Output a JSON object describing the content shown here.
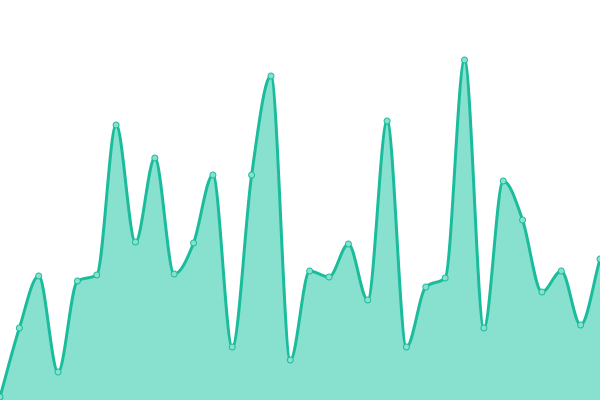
{
  "chart_data": {
    "type": "area",
    "title": "",
    "xlabel": "",
    "ylabel": "",
    "grid": false,
    "legend": "none",
    "x": [
      0,
      1,
      2,
      3,
      4,
      5,
      6,
      7,
      8,
      9,
      10,
      11,
      12,
      13,
      14,
      15,
      16,
      17,
      18,
      19,
      20,
      21,
      22,
      23,
      24,
      25,
      26,
      27,
      28,
      29,
      30,
      31
    ],
    "values": [
      3,
      72,
      124,
      28,
      119,
      125,
      275,
      158,
      242,
      126,
      157,
      225,
      53,
      225,
      324,
      40,
      129,
      123,
      156,
      100,
      279,
      53,
      113,
      122,
      340,
      72,
      219,
      180,
      108,
      129,
      75,
      141
    ],
    "ylim": [
      0,
      400
    ],
    "colors": {
      "line": "#1abc9c",
      "fill": "#88e0cf",
      "point_fill": "#88e0cf"
    }
  }
}
